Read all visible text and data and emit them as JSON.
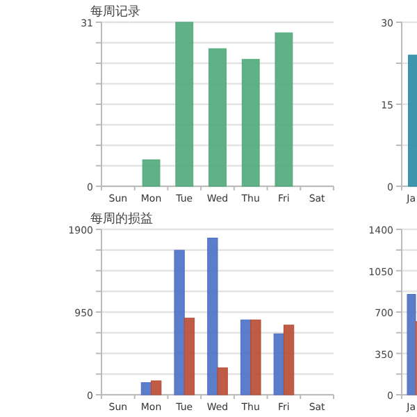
{
  "chart_data": [
    {
      "type": "bar",
      "title": "每周记录",
      "categories": [
        "Sun",
        "Mon",
        "Tue",
        "Wed",
        "Thu",
        "Fri",
        "Sat"
      ],
      "values": [
        0,
        5,
        31,
        26,
        24,
        29,
        0
      ],
      "color": "#4fa87a",
      "ylim": [
        0,
        31
      ],
      "yticks": [
        0,
        {
          "value": 3.875,
          "label": null
        },
        {
          "value": 7.75,
          "label": null
        },
        {
          "value": 11.625,
          "label": null
        },
        {
          "value": 15.5,
          "label": null
        },
        {
          "value": 19.375,
          "label": null
        },
        {
          "value": 23.25,
          "label": null
        },
        {
          "value": 27.125,
          "label": null
        },
        31
      ],
      "grid": "y"
    },
    {
      "type": "bar",
      "title": "每周的损益",
      "categories": [
        "Sun",
        "Mon",
        "Tue",
        "Wed",
        "Thu",
        "Fri",
        "Sat"
      ],
      "series": [
        {
          "color": "#4a6fc4",
          "values": [
            0,
            140,
            1660,
            1800,
            860,
            700,
            0
          ]
        },
        {
          "color": "#b84a32",
          "values": [
            0,
            160,
            880,
            310,
            860,
            800,
            0
          ]
        }
      ],
      "ylim": [
        0,
        1900
      ],
      "yticks": [
        0,
        {
          "value": 237.5,
          "label": null
        },
        {
          "value": 475,
          "label": null
        },
        {
          "value": 712.5,
          "label": null
        },
        950,
        {
          "value": 1187.5,
          "label": null
        },
        {
          "value": 1425,
          "label": null
        },
        {
          "value": 1662.5,
          "label": null
        },
        1900
      ],
      "grid": "y"
    },
    {
      "type": "bar",
      "categories": [
        "Ja"
      ],
      "values": [
        24
      ],
      "color": "#2b8ba3",
      "ylim": [
        0,
        30
      ],
      "yticks": [
        0,
        {
          "value": 7.5,
          "label": null
        },
        15,
        {
          "value": 22.5,
          "label": null
        },
        30
      ],
      "grid": "y"
    },
    {
      "type": "bar",
      "categories": [
        "Ja"
      ],
      "series": [
        {
          "color": "#4a6fc4",
          "values": [
            850
          ]
        },
        {
          "color": "#c25a40",
          "values": [
            620
          ]
        }
      ],
      "ylim": [
        0,
        1400
      ],
      "yticks": [
        0,
        {
          "value": 175,
          "label": null
        },
        350,
        {
          "value": 525,
          "label": null
        },
        700,
        {
          "value": 875,
          "label": null
        },
        1050,
        {
          "value": 1225,
          "label": null
        },
        1400
      ],
      "grid": "y"
    }
  ]
}
